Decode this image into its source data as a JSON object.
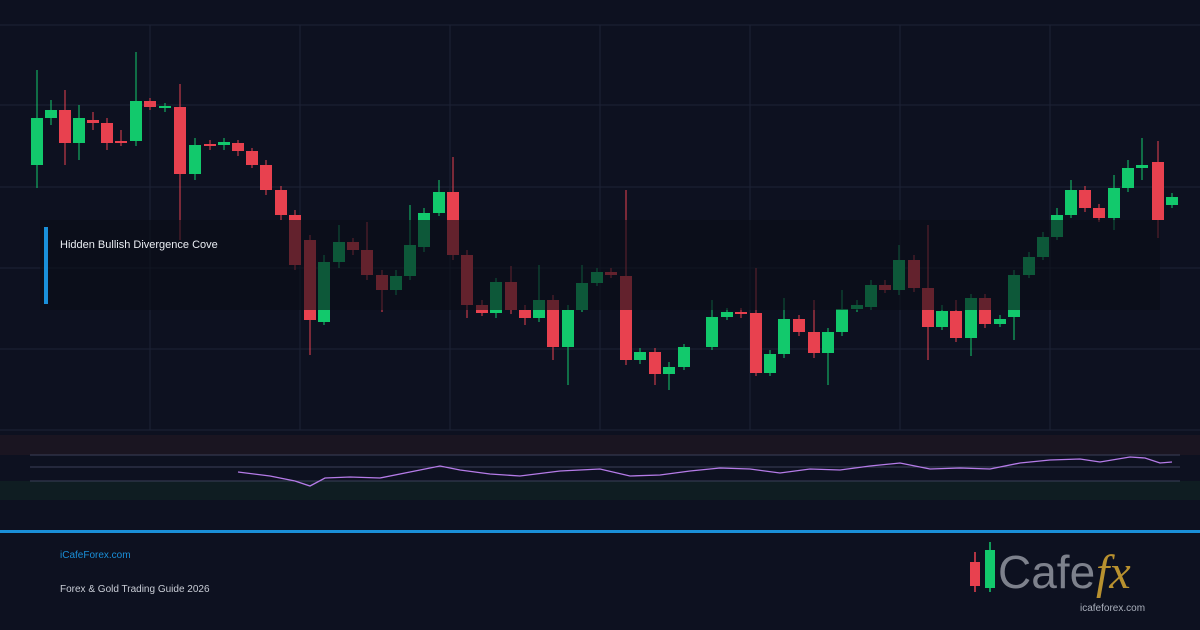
{
  "overlay_label": "Hidden Bullish Divergence Cove",
  "footer": {
    "site": "iCafeForex.com",
    "tagline": "Forex & Gold Trading Guide 2026"
  },
  "logo": {
    "word": "Cafe",
    "accent": "fx",
    "url": "icafeforex.com"
  }
}
